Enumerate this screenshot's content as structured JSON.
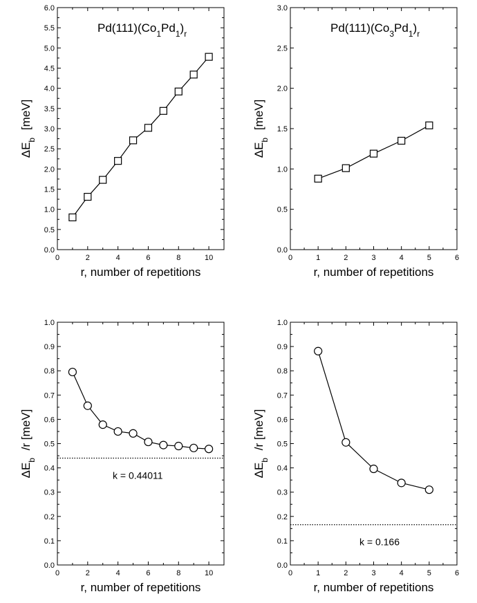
{
  "chart_data": [
    {
      "type": "line",
      "title": "Pd(111)(Co1Pd1)r",
      "title_parts": {
        "a": "Pd(111)(Co",
        "b": "1",
        "c": "Pd",
        "d": "1",
        "e": ")",
        "f": "r"
      },
      "xlabel": "r, number of repetitions",
      "ylabel_parts": {
        "pre": "ΔE",
        "sub": "b",
        "post": "[meV]"
      },
      "xlim": [
        0,
        11
      ],
      "ylim": [
        0,
        6
      ],
      "xticks": [
        0,
        2,
        4,
        6,
        8,
        10
      ],
      "yticks": [
        0.0,
        0.5,
        1.0,
        1.5,
        2.0,
        2.5,
        3.0,
        3.5,
        4.0,
        4.5,
        5.0,
        5.5,
        6.0
      ],
      "ytick_labels": [
        "0.0",
        "0.5",
        "1.0",
        "1.5",
        "2.0",
        "2.5",
        "3.0",
        "3.5",
        "4.0",
        "4.5",
        "5.0",
        "5.5",
        "6.0"
      ],
      "marker": "square",
      "series": [
        {
          "x": [
            1,
            2,
            3,
            4,
            5,
            6,
            7,
            8,
            9,
            10
          ],
          "y": [
            0.8,
            1.31,
            1.73,
            2.2,
            2.71,
            3.02,
            3.44,
            3.92,
            4.34,
            4.78
          ]
        }
      ]
    },
    {
      "type": "line",
      "title": "Pd(111)(Co3Pd1)r",
      "title_parts": {
        "a": "Pd(111)(Co",
        "b": "3",
        "c": "Pd",
        "d": "1",
        "e": ")",
        "f": "r"
      },
      "xlabel": "r, number of repetitions",
      "ylabel_parts": {
        "pre": "ΔE",
        "sub": "b",
        "post": "[meV]"
      },
      "xlim": [
        0,
        6
      ],
      "ylim": [
        0,
        3
      ],
      "xticks": [
        0,
        1,
        2,
        3,
        4,
        5,
        6
      ],
      "yticks": [
        0.0,
        0.5,
        1.0,
        1.5,
        2.0,
        2.5,
        3.0
      ],
      "ytick_labels": [
        "0.0",
        "0.5",
        "1.0",
        "1.5",
        "2.0",
        "2.5",
        "3.0"
      ],
      "marker": "square",
      "series": [
        {
          "x": [
            1,
            2,
            3,
            4,
            5
          ],
          "y": [
            0.88,
            1.01,
            1.19,
            1.35,
            1.54
          ]
        }
      ]
    },
    {
      "type": "line",
      "xlabel": "r, number of repetitions",
      "ylabel_parts": {
        "pre": "ΔE",
        "sub": "b",
        "post": "/r  [meV]"
      },
      "xlim": [
        0,
        11
      ],
      "ylim": [
        0,
        1
      ],
      "xticks": [
        0,
        2,
        4,
        6,
        8,
        10
      ],
      "yticks": [
        0.0,
        0.1,
        0.2,
        0.3,
        0.4,
        0.5,
        0.6,
        0.7,
        0.8,
        0.9,
        1.0
      ],
      "ytick_labels": [
        "0.0",
        "0.1",
        "0.2",
        "0.3",
        "0.4",
        "0.5",
        "0.6",
        "0.7",
        "0.8",
        "0.9",
        "1.0"
      ],
      "marker": "circle",
      "series": [
        {
          "x": [
            1,
            2,
            3,
            4,
            5,
            6,
            7,
            8,
            9,
            10
          ],
          "y": [
            0.795,
            0.656,
            0.578,
            0.55,
            0.542,
            0.507,
            0.494,
            0.49,
            0.482,
            0.478
          ]
        }
      ],
      "hline": {
        "y": 0.44011,
        "style": "dotted"
      },
      "annotation": "k =  0.44011"
    },
    {
      "type": "line",
      "xlabel": "r, number of repetitions",
      "ylabel_parts": {
        "pre": "ΔE",
        "sub": "b",
        "post": "/r  [meV]"
      },
      "xlim": [
        0,
        6
      ],
      "ylim": [
        0,
        1
      ],
      "xticks": [
        0,
        1,
        2,
        3,
        4,
        5,
        6
      ],
      "yticks": [
        0.0,
        0.1,
        0.2,
        0.3,
        0.4,
        0.5,
        0.6,
        0.7,
        0.8,
        0.9,
        1.0
      ],
      "ytick_labels": [
        "0.0",
        "0.1",
        "0.2",
        "0.3",
        "0.4",
        "0.5",
        "0.6",
        "0.7",
        "0.8",
        "0.9",
        "1.0"
      ],
      "marker": "circle",
      "series": [
        {
          "x": [
            1,
            2,
            3,
            4,
            5
          ],
          "y": [
            0.881,
            0.505,
            0.396,
            0.338,
            0.31
          ]
        }
      ],
      "hline": {
        "y": 0.166,
        "style": "dotted"
      },
      "annotation": "k =  0.166"
    }
  ]
}
